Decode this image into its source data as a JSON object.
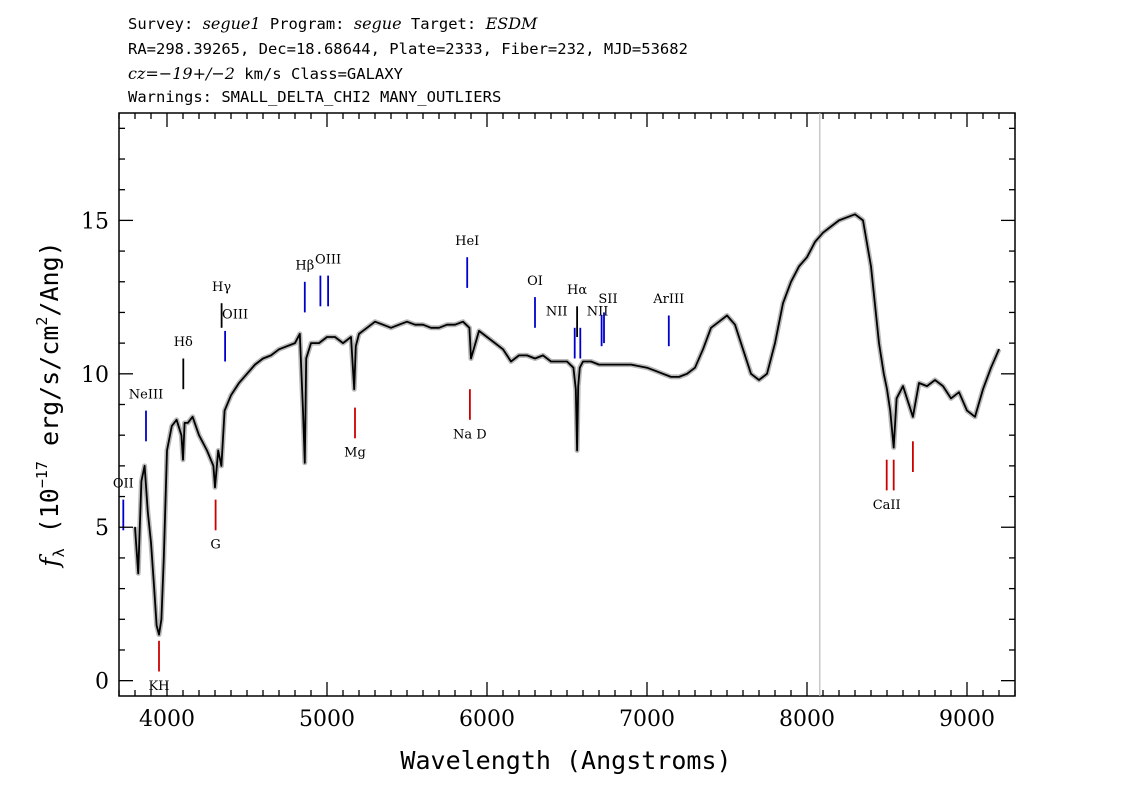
{
  "header": {
    "line1": {
      "survey_label": "Survey: ",
      "survey_value": "segue1",
      "program_label": " Program: ",
      "program_value": "segue",
      "target_label": " Target: ",
      "target_value": "ESDM"
    },
    "line2": "RA=298.39265, Dec=18.68644, Plate=2333, Fiber=232, MJD=53682",
    "line3": {
      "cz_value": "cz=−19+/−2",
      "rest": " km/s Class=GALAXY"
    },
    "line4": "Warnings: SMALL_DELTA_CHI2 MANY_OUTLIERS"
  },
  "chart_data": {
    "type": "line",
    "xlabel": "Wavelength (Angstroms)",
    "ylabel_parts": {
      "f": "f",
      "sub": "λ",
      "open": " (10",
      "exp": "−17",
      "mid": " erg/s/cm",
      "exp2": "2",
      "close": "/Ang)"
    },
    "xlim": [
      3700,
      9300
    ],
    "ylim": [
      -0.5,
      18.5
    ],
    "x_ticks": [
      4000,
      5000,
      6000,
      7000,
      8000,
      9000
    ],
    "x_tick_labels": [
      "4000",
      "5000",
      "6000",
      "7000",
      "8000",
      "9000"
    ],
    "y_ticks": [
      0,
      5,
      10,
      15
    ],
    "y_tick_labels": [
      "0",
      "5",
      "10",
      "15"
    ],
    "vertical_marker_x": 8080,
    "series": [
      {
        "color": "#000000",
        "x": [
          3800,
          3820,
          3840,
          3860,
          3880,
          3900,
          3920,
          3935,
          3950,
          3965,
          3980,
          4000,
          4030,
          4060,
          4090,
          4100,
          4110,
          4130,
          4160,
          4200,
          4250,
          4290,
          4300,
          4320,
          4340,
          4360,
          4400,
          4450,
          4500,
          4550,
          4600,
          4650,
          4700,
          4750,
          4800,
          4830,
          4850,
          4861,
          4870,
          4900,
          4950,
          5000,
          5050,
          5100,
          5150,
          5170,
          5180,
          5200,
          5250,
          5300,
          5350,
          5400,
          5450,
          5500,
          5550,
          5600,
          5650,
          5700,
          5750,
          5800,
          5850,
          5890,
          5900,
          5950,
          6000,
          6050,
          6100,
          6150,
          6200,
          6250,
          6300,
          6350,
          6400,
          6450,
          6500,
          6540,
          6555,
          6563,
          6570,
          6580,
          6600,
          6650,
          6700,
          6750,
          6800,
          6900,
          7000,
          7050,
          7100,
          7150,
          7200,
          7250,
          7300,
          7350,
          7400,
          7450,
          7500,
          7550,
          7600,
          7650,
          7700,
          7750,
          7800,
          7850,
          7900,
          7950,
          8000,
          8050,
          8100,
          8150,
          8200,
          8250,
          8300,
          8350,
          8400,
          8450,
          8480,
          8500,
          8520,
          8542,
          8560,
          8600,
          8662,
          8700,
          8750,
          8800,
          8850,
          8900,
          8950,
          9000,
          9050,
          9100,
          9150,
          9200
        ],
        "y": [
          5.0,
          3.5,
          6.5,
          7.0,
          5.5,
          4.5,
          3.0,
          1.8,
          1.5,
          2.0,
          4.0,
          7.5,
          8.3,
          8.5,
          8.0,
          7.2,
          8.4,
          8.4,
          8.6,
          8.0,
          7.5,
          7.0,
          6.3,
          7.5,
          7.0,
          8.8,
          9.3,
          9.7,
          10.0,
          10.3,
          10.5,
          10.6,
          10.8,
          10.9,
          11.0,
          11.3,
          8.8,
          7.1,
          10.5,
          11.0,
          11.0,
          11.2,
          11.2,
          11.0,
          11.2,
          9.5,
          10.9,
          11.3,
          11.5,
          11.7,
          11.6,
          11.5,
          11.6,
          11.7,
          11.6,
          11.6,
          11.5,
          11.5,
          11.6,
          11.6,
          11.7,
          11.5,
          10.5,
          11.4,
          11.2,
          11.0,
          10.8,
          10.4,
          10.6,
          10.6,
          10.5,
          10.6,
          10.4,
          10.4,
          10.4,
          10.2,
          9.5,
          7.5,
          9.6,
          10.2,
          10.4,
          10.4,
          10.3,
          10.3,
          10.3,
          10.3,
          10.2,
          10.1,
          10.0,
          9.9,
          9.9,
          10.0,
          10.2,
          10.8,
          11.5,
          11.7,
          11.9,
          11.6,
          10.8,
          10.0,
          9.8,
          10.0,
          11.0,
          12.3,
          13.0,
          13.5,
          13.8,
          14.3,
          14.6,
          14.8,
          15.0,
          15.1,
          15.2,
          15.0,
          13.5,
          11.0,
          10.0,
          9.5,
          8.8,
          7.6,
          9.2,
          9.6,
          8.6,
          9.7,
          9.6,
          9.8,
          9.6,
          9.2,
          9.4,
          8.8,
          8.6,
          9.5,
          10.2,
          10.8
        ]
      }
    ],
    "annotations": [
      {
        "label": "OII",
        "x": 3727,
        "color": "#0000cc",
        "y_start": 4.9,
        "y_end": 5.9,
        "side": "above",
        "label_y": 6.3,
        "dx": 0
      },
      {
        "label": "NeIII",
        "x": 3869,
        "color": "#0000cc",
        "y_start": 7.8,
        "y_end": 8.8,
        "side": "above",
        "label_y": 9.2,
        "dx": 0
      },
      {
        "label": "KH",
        "x": 3950,
        "color": "#cc0000",
        "y_start": 0.3,
        "y_end": 1.3,
        "side": "below",
        "label_y": -0.3,
        "dx": 0
      },
      {
        "label": "Hδ",
        "x": 4102,
        "color": "#000000",
        "y_start": 9.5,
        "y_end": 10.5,
        "side": "above",
        "label_y": 10.9,
        "dx": 0
      },
      {
        "label": "G",
        "x": 4304,
        "color": "#cc0000",
        "y_start": 4.9,
        "y_end": 5.9,
        "side": "below",
        "label_y": 4.3,
        "dx": 0
      },
      {
        "label": "Hγ",
        "x": 4341,
        "color": "#000000",
        "y_start": 11.5,
        "y_end": 12.3,
        "side": "above",
        "label_y": 12.7,
        "dx": 0
      },
      {
        "label": "OIII",
        "x": 4363,
        "color": "#0000cc",
        "y_start": 10.4,
        "y_end": 11.4,
        "side": "above",
        "label_y": 11.8,
        "dx": 10
      },
      {
        "label": "Hβ",
        "x": 4861,
        "color": "#0000cc",
        "y_start": 12.0,
        "y_end": 13.0,
        "side": "above",
        "label_y": 13.4,
        "dx": 0
      },
      {
        "label": "OIII",
        "x": 4959,
        "color": "#0000cc",
        "y_start": 12.2,
        "y_end": 13.2,
        "side": "above",
        "label_y": 0,
        "dx": 0
      },
      {
        "label": "OIII",
        "x": 5007,
        "color": "#0000cc",
        "y_start": 12.2,
        "y_end": 13.2,
        "side": "above",
        "label_y": 13.6,
        "dx": 0
      },
      {
        "label": "Mg",
        "x": 5175,
        "color": "#cc0000",
        "y_start": 7.9,
        "y_end": 8.9,
        "side": "below",
        "label_y": 7.3,
        "dx": 0
      },
      {
        "label": "HeI",
        "x": 5876,
        "color": "#0000cc",
        "y_start": 12.8,
        "y_end": 13.8,
        "side": "above",
        "label_y": 14.2,
        "dx": 0
      },
      {
        "label": "Na D",
        "x": 5893,
        "color": "#cc0000",
        "y_start": 8.5,
        "y_end": 9.5,
        "side": "below",
        "label_y": 7.9,
        "dx": 0
      },
      {
        "label": "OI",
        "x": 6300,
        "color": "#0000cc",
        "y_start": 11.5,
        "y_end": 12.5,
        "side": "above",
        "label_y": 12.9,
        "dx": 0
      },
      {
        "label": "NII",
        "x": 6548,
        "color": "#0000cc",
        "y_start": 10.5,
        "y_end": 11.5,
        "side": "above",
        "label_y": 11.9,
        "dx": -18
      },
      {
        "label": "Hα",
        "x": 6563,
        "color": "#000000",
        "y_start": 11.2,
        "y_end": 12.2,
        "side": "above",
        "label_y": 12.6,
        "dx": 0
      },
      {
        "label": "NII",
        "x": 6583,
        "color": "#0000cc",
        "y_start": 10.5,
        "y_end": 11.5,
        "side": "above",
        "label_y": 0,
        "dx": 0
      },
      {
        "label": "NII",
        "x": 6716,
        "color": "#0000cc",
        "y_start": 10.9,
        "y_end": 11.9,
        "side": "above",
        "label_y": 11.9,
        "dx": -4
      },
      {
        "label": "SII",
        "x": 6731,
        "color": "#0000cc",
        "y_start": 11.0,
        "y_end": 12.0,
        "side": "above",
        "label_y": 12.3,
        "dx": 4
      },
      {
        "label": "ArIII",
        "x": 7136,
        "color": "#0000cc",
        "y_start": 10.9,
        "y_end": 11.9,
        "side": "above",
        "label_y": 12.3,
        "dx": 0
      },
      {
        "label": "CaII",
        "x": 8498,
        "color": "#cc0000",
        "y_start": 6.2,
        "y_end": 7.2,
        "side": "below",
        "label_y": 5.6,
        "dx": 0
      },
      {
        "label": "CaII",
        "x": 8542,
        "color": "#cc0000",
        "y_start": 6.2,
        "y_end": 7.2,
        "side": "below",
        "label_y": 0,
        "dx": 0
      },
      {
        "label": "CaII",
        "x": 8662,
        "color": "#cc0000",
        "y_start": 6.8,
        "y_end": 7.8,
        "side": "below",
        "label_y": 0,
        "dx": 0
      }
    ]
  }
}
